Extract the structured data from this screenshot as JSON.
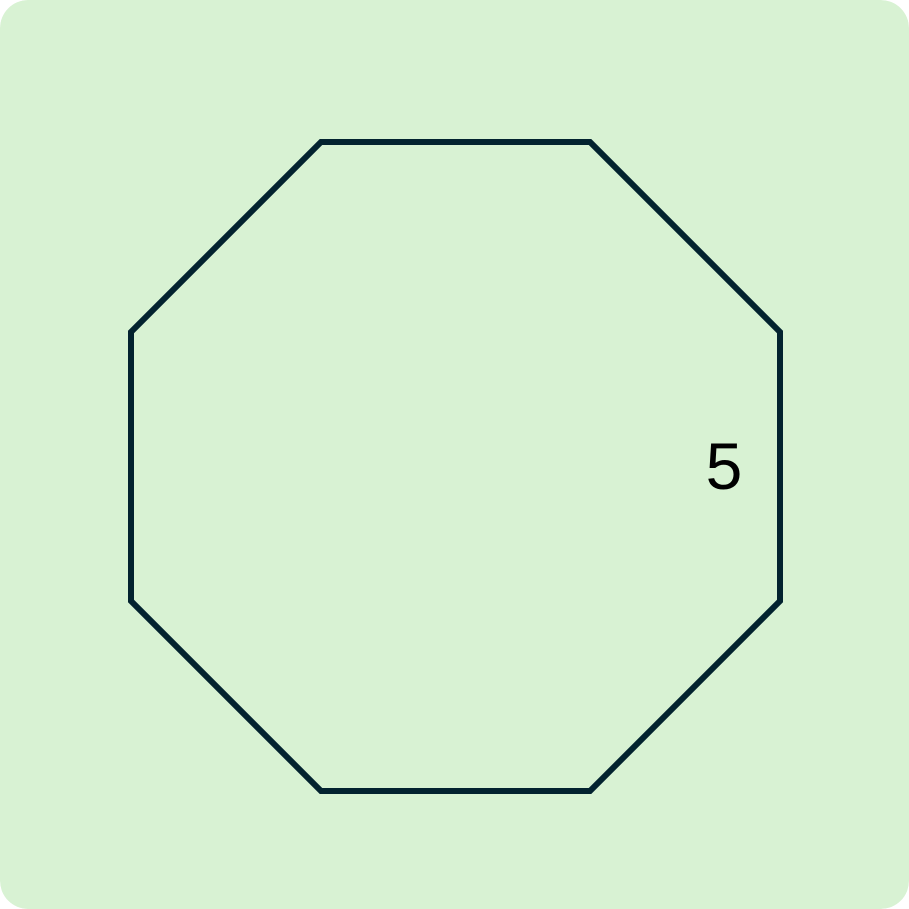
{
  "figure": {
    "shape": "regular octagon",
    "side_label": "5"
  },
  "colors": {
    "background": "#d8f2d3",
    "stroke": "#03232f",
    "label": "#000000"
  }
}
